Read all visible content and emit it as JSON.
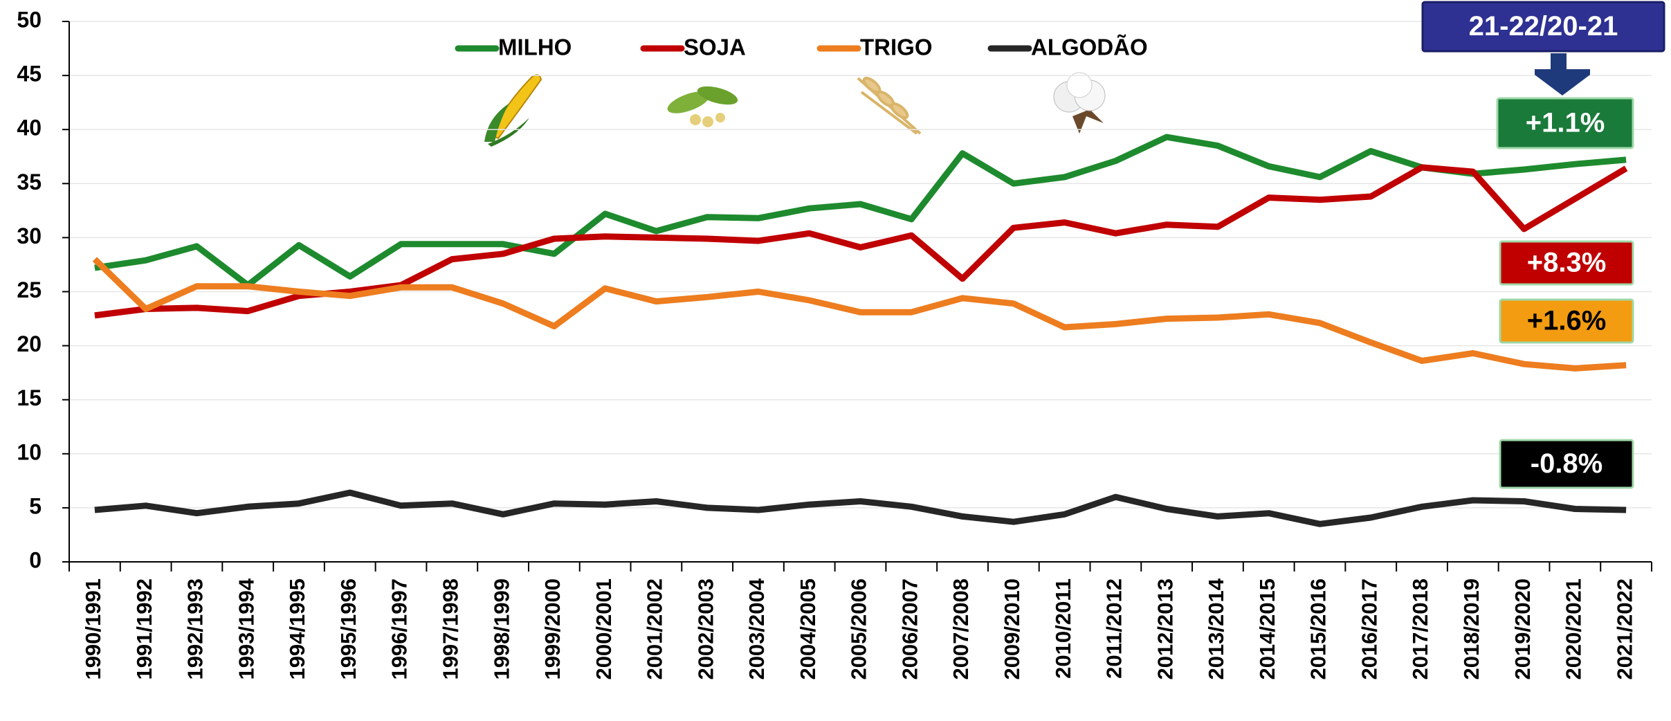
{
  "chart_data": {
    "type": "line",
    "categories": [
      "1990/1991",
      "1991/1992",
      "1992/1993",
      "1993/1994",
      "1994/1995",
      "1995/1996",
      "1996/1997",
      "1997/1998",
      "1998/1999",
      "1999/2000",
      "2000/2001",
      "2001/2002",
      "2002/2003",
      "2003/2004",
      "2004/2005",
      "2005/2006",
      "2006/2007",
      "2007/2008",
      "2009/2010",
      "2010/2011",
      "2011/2012",
      "2012/2013",
      "2013/2014",
      "2014/2015",
      "2015/2016",
      "2016/2017",
      "2017/2018",
      "2018/2019",
      "2019/2020",
      "2020/2021",
      "2021/2022"
    ],
    "series": [
      {
        "name": "MILHO",
        "color": "#1e8a2e",
        "values": [
          27.2,
          27.9,
          29.2,
          25.6,
          29.3,
          26.4,
          29.4,
          29.4,
          29.4,
          28.5,
          32.2,
          30.6,
          31.9,
          31.8,
          32.7,
          33.1,
          31.7,
          37.8,
          35.0,
          35.6,
          37.1,
          39.3,
          38.5,
          36.6,
          35.6,
          38.0,
          36.5,
          35.9,
          36.3,
          36.8,
          37.2
        ]
      },
      {
        "name": "SOJA",
        "color": "#c00000",
        "values": [
          22.8,
          23.4,
          23.5,
          23.2,
          24.6,
          25.0,
          25.6,
          28.0,
          28.5,
          29.9,
          30.1,
          30.0,
          29.9,
          29.7,
          30.4,
          29.1,
          30.2,
          26.2,
          30.9,
          31.4,
          30.4,
          31.2,
          31.0,
          33.7,
          33.5,
          33.8,
          36.5,
          36.1,
          30.8,
          33.6,
          36.4
        ]
      },
      {
        "name": "TRIGO",
        "color": "#ed7d1f",
        "values": [
          28.0,
          23.4,
          25.5,
          25.5,
          25.0,
          24.6,
          25.4,
          25.4,
          23.9,
          21.8,
          25.3,
          24.1,
          24.5,
          25.0,
          24.2,
          23.1,
          23.1,
          24.4,
          23.9,
          21.7,
          22.0,
          22.5,
          22.6,
          22.9,
          22.1,
          20.3,
          18.6,
          19.3,
          18.3,
          17.9,
          18.2
        ]
      },
      {
        "name": "ALGODÃO",
        "color": "#262626",
        "values": [
          4.8,
          5.2,
          4.5,
          5.1,
          5.4,
          6.4,
          5.2,
          5.4,
          4.4,
          5.4,
          5.3,
          5.6,
          5.0,
          4.8,
          5.3,
          5.6,
          5.1,
          4.2,
          3.7,
          4.4,
          6.0,
          4.9,
          4.2,
          4.5,
          3.5,
          4.1,
          5.1,
          5.7,
          5.6,
          4.9,
          4.8
        ]
      }
    ],
    "ylim": [
      0,
      50
    ],
    "yticks": [
      0,
      5,
      10,
      15,
      20,
      25,
      30,
      35,
      40,
      45,
      50
    ],
    "grid": true,
    "annotations": [
      {
        "text": "21-22/20-21",
        "color": "#2e3192",
        "text_color": "#ffffff"
      },
      {
        "text": "+1.1%",
        "color": "#1a7a3a",
        "text_color": "#ffffff"
      },
      {
        "text": "+8.3%",
        "color": "#c00000",
        "text_color": "#ffffff"
      },
      {
        "text": "+1.6%",
        "color": "#f39c12",
        "text_color": "#000000"
      },
      {
        "text": "-0.8%",
        "color": "#000000",
        "text_color": "#ffffff"
      }
    ]
  }
}
